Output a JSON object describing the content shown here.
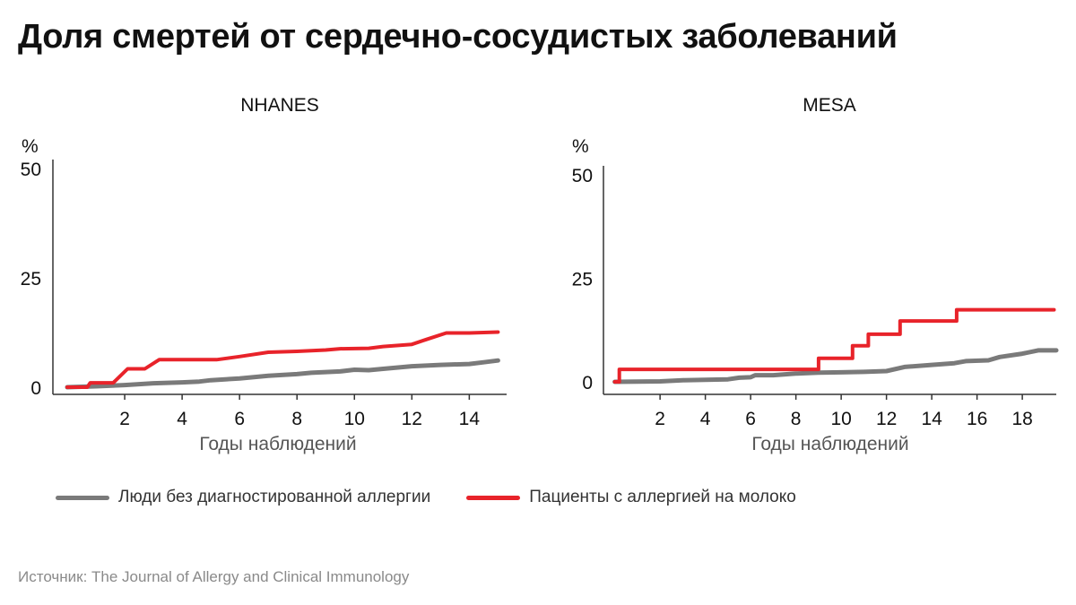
{
  "title": "Доля смертей от сердечно-сосудистых заболеваний",
  "source": "Источник: The Journal of Allergy and Clinical Immunology",
  "colors": {
    "red": "#e8232a",
    "gray": "#7a7a7a",
    "axis": "#333333"
  },
  "legend": [
    {
      "label": "Люди без диагностированной аллергии",
      "color": "#7a7a7a"
    },
    {
      "label": "Пациенты с аллергией на молоко",
      "color": "#e8232a"
    }
  ],
  "chart_data": [
    {
      "type": "line",
      "title": "NHANES",
      "ylabel": "%",
      "xlabel": "Годы наблюдений",
      "xlim": [
        -0.5,
        15.3
      ],
      "ylim": [
        0,
        50
      ],
      "xticks": [
        2,
        4,
        6,
        8,
        10,
        12,
        14
      ],
      "yticks": [
        0,
        25,
        50
      ],
      "series": [
        {
          "name": "Люди без диагностированной аллергии",
          "color": "#7a7a7a",
          "points": [
            [
              0,
              0
            ],
            [
              1,
              0.2
            ],
            [
              2,
              0.5
            ],
            [
              3,
              0.9
            ],
            [
              4,
              1.1
            ],
            [
              4.6,
              1.3
            ],
            [
              5,
              1.6
            ],
            [
              6,
              2.0
            ],
            [
              7,
              2.6
            ],
            [
              8,
              3.0
            ],
            [
              8.5,
              3.3
            ],
            [
              9.5,
              3.6
            ],
            [
              10,
              4.0
            ],
            [
              10.5,
              3.9
            ],
            [
              11,
              4.2
            ],
            [
              12,
              4.8
            ],
            [
              13,
              5.1
            ],
            [
              14,
              5.3
            ],
            [
              14.5,
              5.7
            ],
            [
              15,
              6.1
            ]
          ]
        },
        {
          "name": "Пациенты с аллергией на молоко",
          "color": "#e8232a",
          "points": [
            [
              0,
              0
            ],
            [
              0.7,
              0
            ],
            [
              0.8,
              1.0
            ],
            [
              1.6,
              1.0
            ],
            [
              2.1,
              4.2
            ],
            [
              2.7,
              4.2
            ],
            [
              3.2,
              6.3
            ],
            [
              5.2,
              6.3
            ],
            [
              6,
              7.0
            ],
            [
              7,
              8.0
            ],
            [
              8,
              8.2
            ],
            [
              9,
              8.5
            ],
            [
              9.5,
              8.8
            ],
            [
              10.5,
              8.9
            ],
            [
              11,
              9.3
            ],
            [
              12,
              9.8
            ],
            [
              12.5,
              10.9
            ],
            [
              13.2,
              12.4
            ],
            [
              14,
              12.4
            ],
            [
              15,
              12.6
            ]
          ]
        }
      ]
    },
    {
      "type": "line",
      "title": "MESA",
      "ylabel": "%",
      "xlabel": "Годы наблюдений",
      "xlim": [
        -0.5,
        19.5
      ],
      "ylim": [
        0,
        50
      ],
      "xticks": [
        2,
        4,
        6,
        8,
        10,
        12,
        14,
        16,
        18
      ],
      "yticks": [
        0,
        25,
        50
      ],
      "series": [
        {
          "name": "Люди без диагностированной аллергии",
          "color": "#7a7a7a",
          "points": [
            [
              0,
              0
            ],
            [
              2,
              0.1
            ],
            [
              3,
              0.4
            ],
            [
              4,
              0.5
            ],
            [
              5,
              0.6
            ],
            [
              5.5,
              1.0
            ],
            [
              6,
              1.1
            ],
            [
              6.2,
              1.6
            ],
            [
              7,
              1.6
            ],
            [
              8,
              2.0
            ],
            [
              9,
              2.2
            ],
            [
              10,
              2.3
            ],
            [
              11,
              2.4
            ],
            [
              12,
              2.6
            ],
            [
              12.8,
              3.6
            ],
            [
              14,
              4.1
            ],
            [
              15,
              4.5
            ],
            [
              15.5,
              5.0
            ],
            [
              16.5,
              5.2
            ],
            [
              17,
              6.0
            ],
            [
              18,
              6.8
            ],
            [
              18.7,
              7.6
            ],
            [
              19.5,
              7.6
            ]
          ]
        },
        {
          "name": "Пациенты с аллергией на молоко",
          "color": "#e8232a",
          "points": [
            [
              0,
              0
            ],
            [
              0.2,
              0
            ],
            [
              0.2,
              3.0
            ],
            [
              9,
              3.0
            ],
            [
              9,
              5.7
            ],
            [
              10.5,
              5.7
            ],
            [
              10.5,
              8.7
            ],
            [
              11.2,
              8.7
            ],
            [
              11.2,
              11.5
            ],
            [
              12.6,
              11.5
            ],
            [
              12.6,
              14.7
            ],
            [
              15.1,
              14.7
            ],
            [
              15.1,
              17.4
            ],
            [
              19.4,
              17.4
            ]
          ]
        }
      ]
    }
  ]
}
